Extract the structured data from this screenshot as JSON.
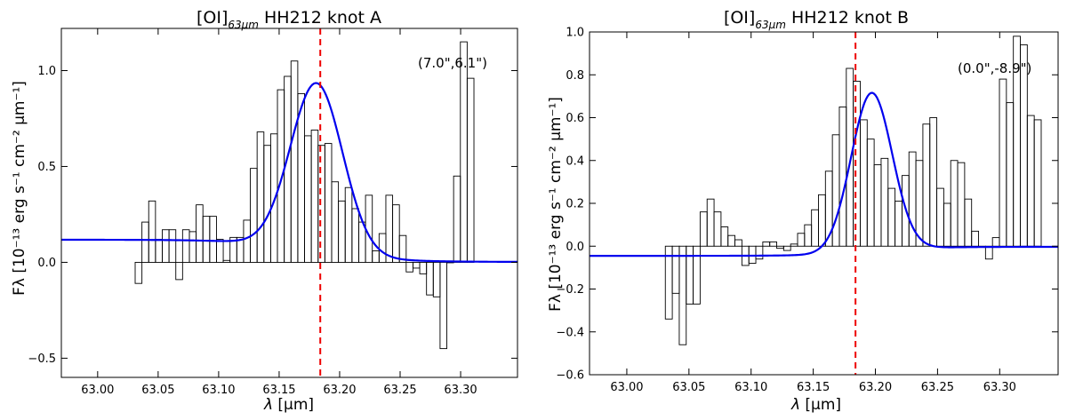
{
  "chart_data": [
    {
      "type": "bar",
      "title_main": "[OI]",
      "title_sub": "63μm",
      "title_rest": " HH212 knot A",
      "xlabel_sym": "λ",
      "xlabel_unit": "[μm]",
      "ylabel": "Fλ [10⁻¹³ erg s⁻¹ cm⁻² μm⁻¹]",
      "annotation": "(7.0\",6.1\")",
      "xlim": [
        62.97,
        63.347
      ],
      "ylim": [
        -0.6,
        1.22
      ],
      "xticks": [
        63.0,
        63.05,
        63.1,
        63.15,
        63.2,
        63.25,
        63.3
      ],
      "xtick_labels": [
        "63.00",
        "63.05",
        "63.10",
        "63.15",
        "63.20",
        "63.25",
        "63.30"
      ],
      "yticks": [
        -0.5,
        0.0,
        0.5,
        1.0
      ],
      "ytick_labels": [
        "−0.5",
        "0.0",
        "0.5",
        "1.0"
      ],
      "bin_width": 0.0056,
      "bins_start": 63.031,
      "values": [
        -0.11,
        0.21,
        0.32,
        0.12,
        0.17,
        0.17,
        -0.09,
        0.17,
        0.16,
        0.3,
        0.24,
        0.24,
        0.12,
        0.01,
        0.13,
        0.13,
        0.22,
        0.49,
        0.68,
        0.61,
        0.67,
        0.9,
        0.97,
        1.05,
        0.88,
        0.66,
        0.69,
        0.61,
        0.62,
        0.42,
        0.32,
        0.39,
        0.28,
        0.21,
        0.35,
        0.06,
        0.15,
        0.35,
        0.3,
        0.14,
        -0.05,
        -0.03,
        -0.06,
        -0.17,
        -0.18,
        -0.45,
        0.0,
        0.45,
        1.15,
        0.96
      ],
      "fit": {
        "continuum": 0.118,
        "amplitude": 0.875,
        "center": 63.181,
        "sigma": 0.0215,
        "continuum_end": 0.002
      },
      "rest_line": 63.184
    },
    {
      "type": "bar",
      "title_main": "[OI]",
      "title_sub": "63μm",
      "title_rest": " HH212 knot B",
      "xlabel_sym": "λ",
      "xlabel_unit": "[μm]",
      "ylabel": "Fλ [10⁻¹³ erg s⁻¹ cm⁻² μm⁻¹]",
      "annotation": "(0.0\",-8.9\")",
      "xlim": [
        62.97,
        63.347
      ],
      "ylim": [
        -0.6,
        1.0
      ],
      "xticks": [
        63.0,
        63.05,
        63.1,
        63.15,
        63.2,
        63.25,
        63.3
      ],
      "xtick_labels": [
        "63.00",
        "63.05",
        "63.10",
        "63.15",
        "63.20",
        "63.25",
        "63.30"
      ],
      "yticks": [
        -0.6,
        -0.4,
        -0.2,
        0.0,
        0.2,
        0.4,
        0.6,
        0.8,
        1.0
      ],
      "ytick_labels": [
        "−0.6",
        "−0.4",
        "−0.2",
        "0.0",
        "0.2",
        "0.4",
        "0.6",
        "0.8",
        "1.0"
      ],
      "bin_width": 0.0056,
      "bins_start": 63.031,
      "values": [
        -0.34,
        -0.22,
        -0.46,
        -0.27,
        -0.27,
        0.16,
        0.22,
        0.16,
        0.09,
        0.05,
        0.03,
        -0.09,
        -0.08,
        -0.06,
        0.02,
        0.02,
        -0.01,
        -0.02,
        0.01,
        0.06,
        0.1,
        0.17,
        0.24,
        0.35,
        0.52,
        0.65,
        0.83,
        0.77,
        0.59,
        0.5,
        0.38,
        0.41,
        0.27,
        0.21,
        0.33,
        0.44,
        0.4,
        0.57,
        0.6,
        0.27,
        0.2,
        0.4,
        0.39,
        0.22,
        0.07,
        0.0,
        -0.06,
        0.04,
        0.78,
        0.67,
        0.98,
        0.94,
        0.61,
        0.59
      ],
      "fit": {
        "continuum": -0.045,
        "amplitude": 0.74,
        "center": 63.197,
        "sigma": 0.0165,
        "continuum_end": -0.003
      },
      "rest_line": 63.184
    }
  ],
  "colors": {
    "fit": "#0000ee",
    "rest_line": "#ee0000",
    "bars": "#000000"
  }
}
